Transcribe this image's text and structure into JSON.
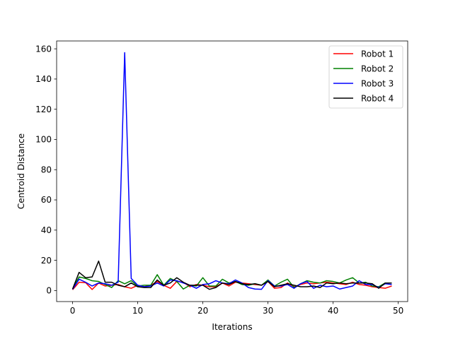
{
  "chart_data": {
    "type": "line",
    "title": "",
    "xlabel": "Iterations",
    "ylabel": "Centroid Distance",
    "xlim": [
      -2.45,
      51.45
    ],
    "ylim": [
      -7.3,
      165.2
    ],
    "xticks": [
      0,
      10,
      20,
      30,
      40,
      50
    ],
    "yticks": [
      0,
      20,
      40,
      60,
      80,
      100,
      120,
      140,
      160
    ],
    "grid": false,
    "legend": "top-right",
    "x": [
      0,
      1,
      2,
      3,
      4,
      5,
      6,
      7,
      8,
      9,
      10,
      11,
      12,
      13,
      14,
      15,
      16,
      17,
      18,
      19,
      20,
      21,
      22,
      23,
      24,
      25,
      26,
      27,
      28,
      29,
      30,
      31,
      32,
      33,
      34,
      35,
      36,
      37,
      38,
      39,
      40,
      41,
      42,
      43,
      44,
      45,
      46,
      47,
      48,
      49
    ],
    "series": [
      {
        "name": "Robot 1",
        "color": "#ff0000",
        "values": [
          0.5,
          5.5,
          5.2,
          0.7,
          5.0,
          3.0,
          3.5,
          4.0,
          2.5,
          1.5,
          3.5,
          2.5,
          3.5,
          6.0,
          3.5,
          1.5,
          6.0,
          5.5,
          2.5,
          4.0,
          3.5,
          2.5,
          2.5,
          5.0,
          3.0,
          5.5,
          5.0,
          4.5,
          4.0,
          3.5,
          6.0,
          1.5,
          2.0,
          5.0,
          2.5,
          4.0,
          5.0,
          4.5,
          5.0,
          5.5,
          5.0,
          4.5,
          4.0,
          5.5,
          4.0,
          3.5,
          2.5,
          2.0,
          1.5,
          3.0
        ]
      },
      {
        "name": "Robot 2",
        "color": "#008000",
        "values": [
          1.0,
          9.0,
          8.0,
          6.5,
          6.0,
          4.0,
          2.0,
          6.5,
          4.5,
          6.5,
          3.0,
          3.5,
          3.5,
          10.5,
          3.5,
          8.0,
          6.0,
          1.0,
          3.5,
          3.0,
          8.5,
          3.0,
          3.0,
          7.5,
          5.0,
          6.0,
          4.0,
          3.5,
          4.5,
          3.5,
          7.0,
          3.0,
          5.5,
          7.5,
          2.0,
          4.5,
          6.5,
          5.5,
          5.0,
          6.5,
          6.0,
          5.0,
          7.0,
          8.5,
          5.0,
          5.5,
          3.0,
          2.5,
          5.0,
          5.0
        ]
      },
      {
        "name": "Robot 3",
        "color": "#0000ff",
        "values": [
          0.8,
          7.5,
          5.5,
          3.0,
          5.0,
          4.5,
          3.5,
          5.5,
          157.5,
          8.0,
          3.5,
          2.5,
          3.0,
          5.0,
          3.0,
          7.0,
          6.5,
          5.0,
          3.5,
          1.5,
          4.0,
          4.5,
          6.5,
          5.0,
          4.5,
          7.0,
          5.0,
          2.0,
          1.0,
          0.8,
          6.5,
          3.0,
          3.0,
          4.0,
          1.5,
          4.5,
          6.0,
          1.5,
          3.5,
          2.5,
          3.0,
          1.0,
          2.0,
          3.0,
          6.5,
          4.0,
          4.0,
          2.0,
          4.5,
          4.0
        ]
      },
      {
        "name": "Robot 4",
        "color": "#000000",
        "values": [
          1.0,
          12.0,
          8.5,
          9.0,
          19.5,
          5.5,
          5.5,
          3.5,
          2.5,
          5.0,
          2.5,
          2.0,
          2.0,
          7.0,
          3.5,
          5.0,
          8.5,
          5.5,
          3.5,
          3.5,
          3.5,
          0.8,
          2.0,
          5.0,
          4.0,
          6.0,
          4.5,
          4.0,
          4.5,
          3.5,
          6.0,
          2.5,
          3.5,
          4.5,
          3.5,
          2.5,
          2.5,
          3.0,
          2.0,
          5.0,
          4.5,
          5.0,
          4.5,
          5.0,
          5.0,
          5.0,
          4.5,
          1.5,
          5.0,
          5.0
        ]
      }
    ]
  }
}
